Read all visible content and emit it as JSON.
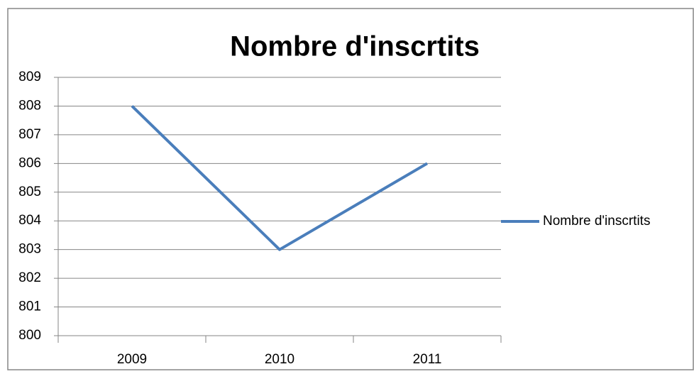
{
  "chart_data": {
    "type": "line",
    "title": "Nombre d'inscrtits",
    "categories": [
      "2009",
      "2010",
      "2011"
    ],
    "series": [
      {
        "name": "Nombre d'inscrtits",
        "color": "#4a7ebb",
        "values": [
          808,
          803,
          806
        ]
      }
    ],
    "ylim": [
      800,
      809
    ],
    "yticks": [
      800,
      801,
      802,
      803,
      804,
      805,
      806,
      807,
      808,
      809
    ],
    "grid": true,
    "legend": "right"
  }
}
